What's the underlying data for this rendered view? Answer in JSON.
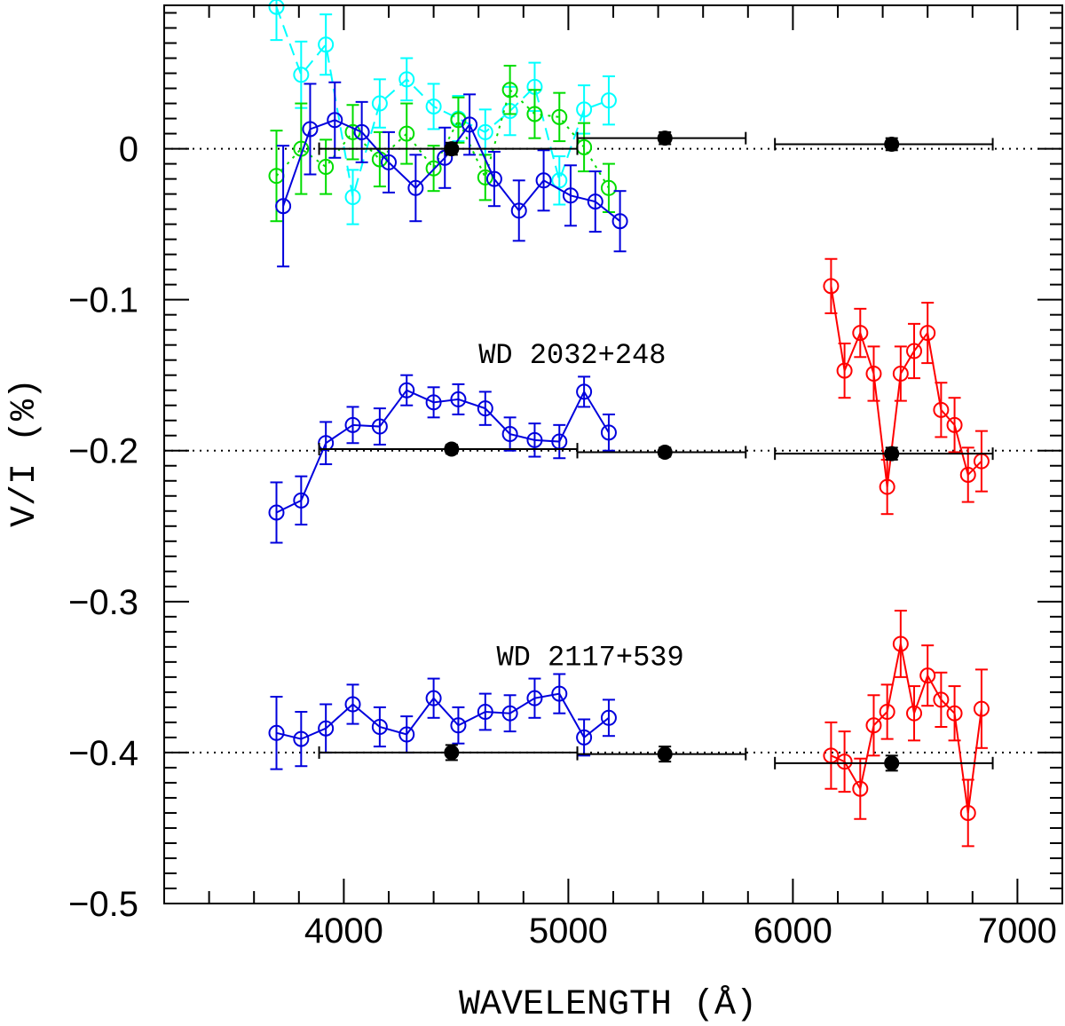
{
  "chart_data": {
    "type": "scatter",
    "xlabel": "WAVELENGTH (Å)",
    "ylabel": "V/I (%)",
    "xlim": [
      3200,
      7200
    ],
    "ylim": [
      -0.5,
      0.095
    ],
    "xticks": [
      4000,
      5000,
      6000,
      7000
    ],
    "xtick_labels": [
      "4000",
      "5000",
      "6000",
      "7000"
    ],
    "yticks": [
      0,
      -0.1,
      -0.2,
      -0.3,
      -0.4,
      -0.5
    ],
    "ytick_labels": [
      "0",
      "−0.1",
      "−0.2",
      "−0.3",
      "−0.4",
      "−0.5"
    ],
    "grid": false,
    "legend": "none",
    "annotations": [
      {
        "text": "WD 2032+248",
        "x": 4600,
        "y": -0.142
      },
      {
        "text": "WD 2117+539",
        "x": 4680,
        "y": -0.342
      }
    ],
    "reference_levels": [
      0,
      -0.2,
      -0.4
    ],
    "series": [
      {
        "color": "#00ffff",
        "style": "dashed",
        "marker": "open-circle",
        "x": [
          3700,
          3810,
          3920,
          4040,
          4160,
          4280,
          4400,
          4510,
          4630,
          4740,
          4850,
          4960,
          5070,
          5180
        ],
        "y": [
          0.094,
          0.049,
          0.069,
          -0.032,
          0.03,
          0.046,
          0.028,
          0.02,
          0.011,
          0.025,
          0.041,
          -0.021,
          0.026,
          0.032
        ],
        "err": [
          0.022,
          0.022,
          0.02,
          0.018,
          0.016,
          0.014,
          0.015,
          0.015,
          0.015,
          0.016,
          0.016,
          0.016,
          0.016,
          0.016
        ]
      },
      {
        "color": "#00dd00",
        "style": "dotted",
        "marker": "open-circle",
        "x": [
          3700,
          3810,
          3920,
          4040,
          4160,
          4280,
          4400,
          4510,
          4630,
          4740,
          4850,
          4960,
          5070,
          5180
        ],
        "y": [
          -0.018,
          0.0,
          -0.012,
          0.011,
          -0.007,
          0.01,
          -0.013,
          0.019,
          -0.019,
          0.039,
          0.023,
          0.021,
          0.001,
          -0.026
        ],
        "err": [
          0.03,
          0.03,
          0.018,
          0.018,
          0.018,
          0.02,
          0.015,
          0.015,
          0.015,
          0.016,
          0.016,
          0.016,
          0.016,
          0.016
        ]
      },
      {
        "color": "#0000dd",
        "style": "solid",
        "marker": "open-circle",
        "x": [
          3730,
          3850,
          3960,
          4080,
          4200,
          4320,
          4450,
          4560,
          4670,
          4780,
          4890,
          5010,
          5120,
          5230
        ],
        "y": [
          -0.038,
          0.013,
          0.019,
          0.011,
          -0.009,
          -0.026,
          -0.006,
          0.016,
          -0.02,
          -0.041,
          -0.021,
          -0.031,
          -0.035,
          -0.048
        ],
        "err": [
          0.04,
          0.03,
          0.025,
          0.02,
          0.02,
          0.022,
          0.02,
          0.02,
          0.018,
          0.02,
          0.02,
          0.02,
          0.02,
          0.02
        ]
      },
      {
        "color": "#0000dd",
        "style": "solid",
        "marker": "open-circle",
        "x": [
          3700,
          3810,
          3920,
          4040,
          4160,
          4280,
          4400,
          4510,
          4630,
          4740,
          4850,
          4960,
          5070,
          5180
        ],
        "y": [
          -0.241,
          -0.233,
          -0.195,
          -0.183,
          -0.184,
          -0.16,
          -0.168,
          -0.166,
          -0.172,
          -0.189,
          -0.193,
          -0.194,
          -0.161,
          -0.188
        ],
        "err": [
          0.02,
          0.016,
          0.014,
          0.012,
          0.012,
          0.01,
          0.01,
          0.01,
          0.011,
          0.011,
          0.011,
          0.011,
          0.01,
          0.012
        ]
      },
      {
        "color": "#ff0000",
        "style": "solid",
        "marker": "open-circle",
        "x": [
          6170,
          6230,
          6300,
          6360,
          6420,
          6480,
          6540,
          6600,
          6660,
          6720,
          6780,
          6840
        ],
        "y": [
          -0.091,
          -0.147,
          -0.122,
          -0.149,
          -0.224,
          -0.149,
          -0.134,
          -0.122,
          -0.173,
          -0.183,
          -0.216,
          -0.207
        ],
        "err": [
          0.018,
          0.018,
          0.016,
          0.018,
          0.018,
          0.018,
          0.018,
          0.02,
          0.018,
          0.018,
          0.018,
          0.02
        ]
      },
      {
        "color": "#0000dd",
        "style": "solid",
        "marker": "open-circle",
        "x": [
          3700,
          3810,
          3920,
          4040,
          4160,
          4280,
          4400,
          4510,
          4630,
          4740,
          4850,
          4960,
          5070,
          5180
        ],
        "y": [
          -0.387,
          -0.391,
          -0.384,
          -0.368,
          -0.383,
          -0.388,
          -0.364,
          -0.382,
          -0.373,
          -0.374,
          -0.364,
          -0.361,
          -0.39,
          -0.377
        ],
        "err": [
          0.024,
          0.018,
          0.016,
          0.013,
          0.013,
          0.012,
          0.013,
          0.012,
          0.012,
          0.012,
          0.013,
          0.013,
          0.012,
          0.012
        ]
      },
      {
        "color": "#ff0000",
        "style": "solid",
        "marker": "open-circle",
        "x": [
          6170,
          6230,
          6300,
          6360,
          6420,
          6480,
          6540,
          6600,
          6660,
          6720,
          6780,
          6840
        ],
        "y": [
          -0.402,
          -0.406,
          -0.424,
          -0.382,
          -0.373,
          -0.328,
          -0.374,
          -0.349,
          -0.365,
          -0.374,
          -0.44,
          -0.371
        ],
        "err": [
          0.022,
          0.02,
          0.02,
          0.02,
          0.018,
          0.022,
          0.018,
          0.02,
          0.018,
          0.018,
          0.022,
          0.026
        ]
      },
      {
        "color": "#000000",
        "style": "none",
        "marker": "filled-circle",
        "name": "",
        "x": [
          4480,
          5430,
          6440,
          4480,
          5430,
          6440,
          4480,
          5430,
          6440
        ],
        "y": [
          0.0,
          0.007,
          0.003,
          -0.199,
          -0.201,
          -0.202,
          -0.4,
          -0.401,
          -0.407
        ],
        "err": [
          0.004,
          0.004,
          0.004,
          0.003,
          0.003,
          0.004,
          0.005,
          0.005,
          0.005
        ],
        "x_low": [
          3890,
          5040,
          5920,
          3890,
          5040,
          5920,
          3890,
          5040,
          5920
        ],
        "x_high": [
          5040,
          5790,
          6890,
          5040,
          5790,
          6890,
          5040,
          5790,
          6890
        ]
      }
    ]
  }
}
